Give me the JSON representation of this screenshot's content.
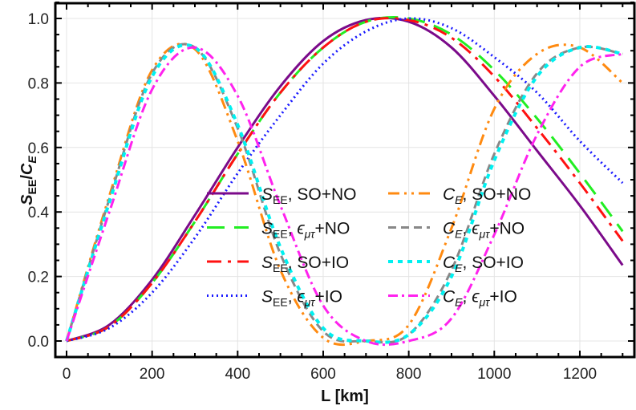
{
  "chart_data": {
    "type": "line",
    "title": "",
    "xlabel": "L [km]",
    "ylabel": "S_EE/C_E",
    "xlim": [
      -20,
      1330
    ],
    "ylim": [
      -0.05,
      1.05
    ],
    "x_ticks": [
      0,
      200,
      400,
      600,
      800,
      1000,
      1200
    ],
    "y_ticks": [
      0.0,
      0.2,
      0.4,
      0.6,
      0.8,
      1.0
    ],
    "x_tick_labels": [
      "0",
      "200",
      "400",
      "600",
      "800",
      "1000",
      "1200"
    ],
    "y_tick_labels": [
      "0.0",
      "0.2",
      "0.4",
      "0.6",
      "0.8",
      "1.0"
    ],
    "grid": true,
    "legend_position": "center-lower, two columns",
    "x": [
      0,
      100,
      200,
      300,
      400,
      500,
      600,
      700,
      800,
      900,
      1000,
      1100,
      1200,
      1300
    ],
    "series": [
      {
        "name": "S_EE, SO+NO",
        "label_main": "S",
        "label_sub": "EE",
        "label_rest": ", SO+NO",
        "color": "#7b0a8a",
        "dash": "",
        "width": 3,
        "values": [
          0,
          0.05,
          0.19,
          0.39,
          0.6,
          0.79,
          0.93,
          0.995,
          0.99,
          0.91,
          0.76,
          0.59,
          0.42,
          0.235
        ]
      },
      {
        "name": "S_EE, ε_μτ+NO",
        "label_main": "S",
        "label_sub": "EE",
        "label_rest": ", ε",
        "label_rest_sub": "μτ",
        "label_tail": "+NO",
        "color": "#22ee22",
        "dash": "22 12",
        "width": 3,
        "values": [
          0,
          0.045,
          0.18,
          0.37,
          0.58,
          0.77,
          0.91,
          0.99,
          1.0,
          0.95,
          0.84,
          0.69,
          0.52,
          0.34
        ]
      },
      {
        "name": "S_EE, SO+IO",
        "label_main": "S",
        "label_sub": "EE",
        "label_rest": ", SO+IO",
        "color": "#ff1111",
        "dash": "18 8 4 8",
        "width": 3,
        "values": [
          0,
          0.045,
          0.18,
          0.37,
          0.58,
          0.77,
          0.91,
          0.99,
          0.995,
          0.94,
          0.82,
          0.66,
          0.49,
          0.31
        ]
      },
      {
        "name": "S_EE, ε_μτ+IO",
        "label_main": "S",
        "label_sub": "EE",
        "label_rest": ", ε",
        "label_rest_sub": "μτ",
        "label_tail": "+IO",
        "color": "#1a1aff",
        "dash": "2 4",
        "width": 3,
        "values": [
          0,
          0.04,
          0.15,
          0.32,
          0.52,
          0.7,
          0.86,
          0.96,
          1.0,
          0.97,
          0.88,
          0.77,
          0.62,
          0.49
        ]
      },
      {
        "name": "C_E, SO+NO",
        "label_main": "C",
        "label_sub": "E",
        "label_rest": ", SO+NO",
        "color": "#ff8a10",
        "dash": "14 6 3 6 3 6",
        "width": 3,
        "values": [
          0,
          0.45,
          0.84,
          0.905,
          0.62,
          0.22,
          0.01,
          0.0,
          0.05,
          0.35,
          0.72,
          0.89,
          0.91,
          0.8
        ]
      },
      {
        "name": "C_E, ε_μτ+NO",
        "label_main": "C",
        "label_sub": "E",
        "label_rest": ", ε",
        "label_rest_sub": "μτ",
        "label_tail": "+NO",
        "color": "#888888",
        "dash": "10 6",
        "width": 3,
        "values": [
          0,
          0.44,
          0.83,
          0.91,
          0.66,
          0.27,
          0.03,
          0.0,
          0.02,
          0.22,
          0.58,
          0.83,
          0.91,
          0.89
        ]
      },
      {
        "name": "C_E, SO+IO",
        "label_main": "C",
        "label_sub": "E",
        "label_rest": ", SO+IO",
        "color": "#00f0f0",
        "dash": "6 6",
        "width": 4,
        "values": [
          0,
          0.43,
          0.82,
          0.91,
          0.67,
          0.29,
          0.04,
          0.0,
          0.02,
          0.2,
          0.56,
          0.82,
          0.91,
          0.89
        ]
      },
      {
        "name": "C_E, ε_μτ+IO",
        "label_main": "C",
        "label_sub": "E",
        "label_rest": ", ε",
        "label_rest_sub": "μτ",
        "label_tail": "+IO",
        "color": "#ff22ee",
        "dash": "12 5 3 5",
        "width": 3,
        "values": [
          0,
          0.4,
          0.78,
          0.91,
          0.76,
          0.42,
          0.11,
          0.0,
          0.0,
          0.07,
          0.33,
          0.64,
          0.85,
          0.89
        ]
      }
    ]
  }
}
